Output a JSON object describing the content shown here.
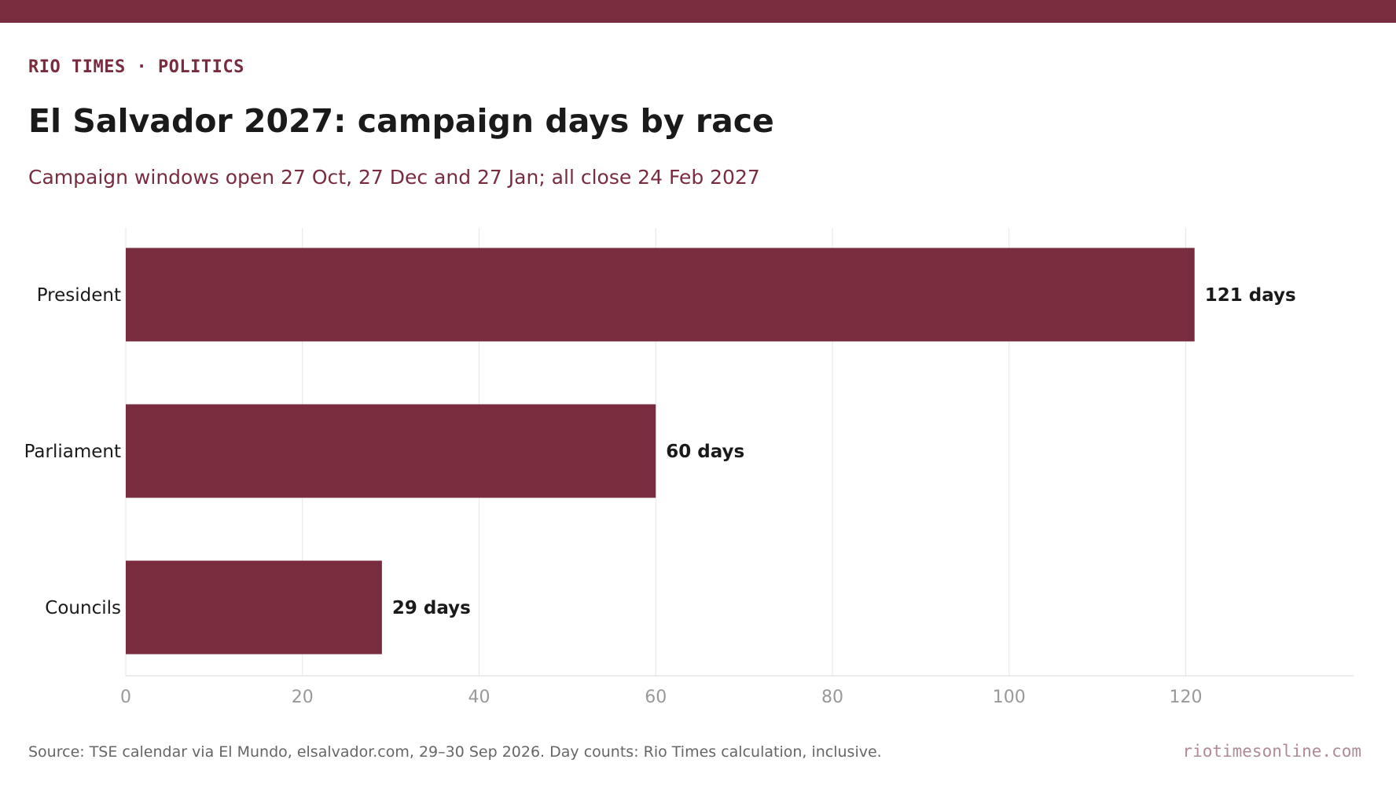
{
  "header": {
    "kicker": "RIO TIMES · POLITICS",
    "title": "El Salvador 2027: campaign days by race",
    "subtitle": "Campaign windows open 27 Oct, 27 Dec and 27 Jan; all close 24 Feb 2027"
  },
  "footer": {
    "source": "Source: TSE calendar via El Mundo, elsalvador.com, 29–30 Sep 2026. Day counts: Rio Times calculation, inclusive.",
    "site": "riotimesonline.com"
  },
  "colors": {
    "accent": "#7a2c3f",
    "bar": "#7a2c3f",
    "grid": "#e6e6e6",
    "tick_text": "#999999"
  },
  "chart_data": {
    "type": "bar",
    "orientation": "horizontal",
    "categories": [
      "President",
      "Parliament",
      "Councils"
    ],
    "values": [
      121,
      60,
      29
    ],
    "value_labels": [
      "121 days",
      "60 days",
      "29 days"
    ],
    "xlim": [
      0,
      139
    ],
    "xticks": [
      0,
      20,
      40,
      60,
      80,
      100,
      120
    ],
    "xlabel": "",
    "ylabel": "",
    "grid": "vertical"
  }
}
